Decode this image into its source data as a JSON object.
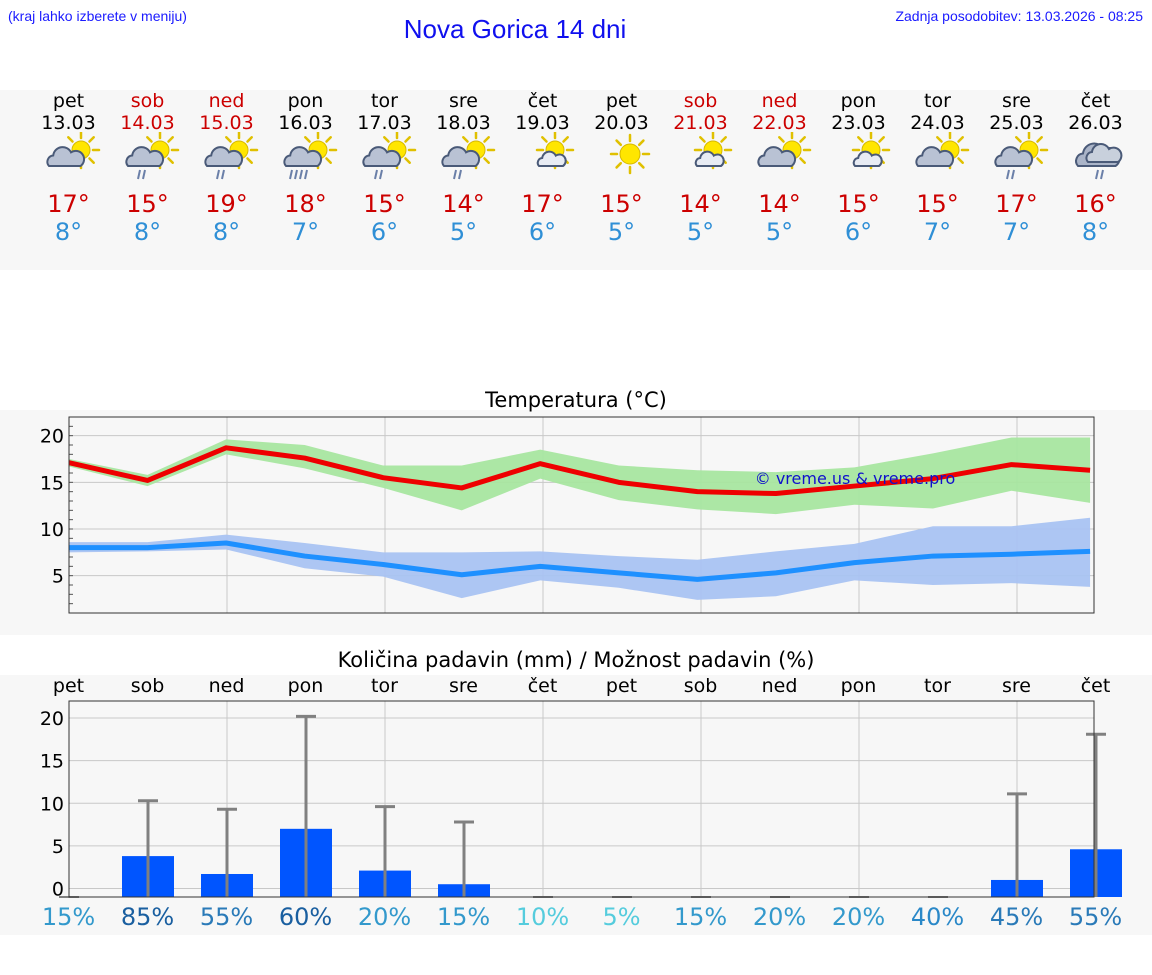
{
  "header": {
    "left_note": "(kraj lahko izberete v meniju)",
    "title": "Nova Gorica 14 dni",
    "right_note": "Zadnja posodobitev: 13.03.2026 - 08:25"
  },
  "days": [
    {
      "day": "pet",
      "date": "13.03",
      "weekend": false,
      "icon": "sun-cloud-icon",
      "max": "17°",
      "min": "8°"
    },
    {
      "day": "sob",
      "date": "14.03",
      "weekend": true,
      "icon": "sun-cloud-rain-icon",
      "max": "15°",
      "min": "8°"
    },
    {
      "day": "ned",
      "date": "15.03",
      "weekend": true,
      "icon": "sun-cloud-rain-icon",
      "max": "19°",
      "min": "8°"
    },
    {
      "day": "pon",
      "date": "16.03",
      "weekend": false,
      "icon": "sun-cloud-heavy-rain-icon",
      "max": "18°",
      "min": "7°"
    },
    {
      "day": "tor",
      "date": "17.03",
      "weekend": false,
      "icon": "sun-cloud-rain-icon",
      "max": "15°",
      "min": "6°"
    },
    {
      "day": "sre",
      "date": "18.03",
      "weekend": false,
      "icon": "sun-cloud-rain-icon",
      "max": "14°",
      "min": "5°"
    },
    {
      "day": "čet",
      "date": "19.03",
      "weekend": false,
      "icon": "sun-small-cloud-icon",
      "max": "17°",
      "min": "6°"
    },
    {
      "day": "pet",
      "date": "20.03",
      "weekend": false,
      "icon": "sun-icon",
      "max": "15°",
      "min": "5°"
    },
    {
      "day": "sob",
      "date": "21.03",
      "weekend": true,
      "icon": "sun-small-cloud-icon",
      "max": "14°",
      "min": "5°"
    },
    {
      "day": "ned",
      "date": "22.03",
      "weekend": true,
      "icon": "sun-cloud-icon",
      "max": "14°",
      "min": "5°"
    },
    {
      "day": "pon",
      "date": "23.03",
      "weekend": false,
      "icon": "sun-small-cloud-icon",
      "max": "15°",
      "min": "6°"
    },
    {
      "day": "tor",
      "date": "24.03",
      "weekend": false,
      "icon": "sun-cloud-icon",
      "max": "15°",
      "min": "7°"
    },
    {
      "day": "sre",
      "date": "25.03",
      "weekend": false,
      "icon": "sun-cloud-rain-icon",
      "max": "17°",
      "min": "7°"
    },
    {
      "day": "čet",
      "date": "26.03",
      "weekend": false,
      "icon": "cloud-rain-icon",
      "max": "16°",
      "min": "8°"
    }
  ],
  "colors": {
    "weekend": "#cc0000",
    "max_line": "#ee0000",
    "max_band": "#a8e6a0",
    "min_line": "#1e90ff",
    "min_band": "#a9c3f2",
    "precip_bar": "#0055ff",
    "whisker": "#808080"
  },
  "chart_data": [
    {
      "type": "line",
      "title": "Temperatura (°C)",
      "watermark": "© vreme.us & vreme.pro",
      "ylim": [
        1,
        22
      ],
      "yticks": [
        5,
        10,
        15,
        20
      ],
      "ytick_labels": [
        "5",
        "10",
        "15",
        "20"
      ],
      "x_days": 14,
      "series": [
        {
          "name": "max",
          "values": [
            17.1,
            15.2,
            18.7,
            17.6,
            15.5,
            14.4,
            17.0,
            15.0,
            14.0,
            13.8,
            14.6,
            15.4,
            16.9,
            16.3
          ],
          "band_low": [
            16.7,
            14.6,
            18.0,
            16.5,
            14.4,
            12.0,
            15.4,
            13.1,
            12.1,
            11.6,
            12.6,
            12.2,
            14.1,
            12.8
          ],
          "band_high": [
            17.5,
            15.8,
            19.6,
            19.0,
            16.8,
            16.8,
            18.5,
            16.8,
            16.3,
            16.1,
            16.6,
            18.1,
            19.8,
            19.8
          ]
        },
        {
          "name": "min",
          "values": [
            8.0,
            8.0,
            8.5,
            7.1,
            6.2,
            5.1,
            6.0,
            5.3,
            4.6,
            5.3,
            6.4,
            7.1,
            7.3,
            7.6
          ],
          "band_low": [
            7.5,
            7.6,
            7.8,
            5.8,
            4.9,
            2.6,
            4.5,
            3.7,
            2.4,
            2.8,
            4.5,
            4.0,
            4.2,
            3.8
          ],
          "band_high": [
            8.6,
            8.6,
            9.4,
            8.5,
            7.5,
            7.5,
            7.6,
            7.1,
            6.7,
            7.6,
            8.4,
            10.3,
            10.3,
            11.2
          ]
        }
      ]
    },
    {
      "type": "bar",
      "title": "Količina padavin (mm) / Možnost padavin (%)",
      "categories": [
        "pet",
        "sob",
        "ned",
        "pon",
        "tor",
        "sre",
        "čet",
        "pet",
        "sob",
        "ned",
        "pon",
        "tor",
        "sre",
        "čet"
      ],
      "ylim": [
        -1,
        22
      ],
      "yticks": [
        0,
        5,
        10,
        15,
        20
      ],
      "ytick_labels": [
        "0",
        "5",
        "10",
        "15",
        "20"
      ],
      "values": [
        0,
        3.8,
        1.7,
        7.0,
        2.1,
        0.5,
        0,
        0,
        0,
        0,
        0,
        0,
        1.0,
        4.6
      ],
      "max_values": [
        0,
        10.3,
        9.3,
        20.2,
        9.6,
        7.8,
        0,
        0,
        0,
        0,
        0,
        0,
        11.1,
        18.1
      ],
      "probability": [
        "15%",
        "85%",
        "55%",
        "60%",
        "20%",
        "15%",
        "10%",
        "5%",
        "15%",
        "20%",
        "20%",
        "40%",
        "45%",
        "55%"
      ],
      "probability_colors": [
        "#3399cc",
        "#1a5fa0",
        "#2a7ab8",
        "#1a5fa0",
        "#3399cc",
        "#3399cc",
        "#55ccdd",
        "#55ccdd",
        "#3399cc",
        "#3399cc",
        "#3399cc",
        "#2a88c8",
        "#2a7ab8",
        "#2a7ab8"
      ]
    }
  ]
}
